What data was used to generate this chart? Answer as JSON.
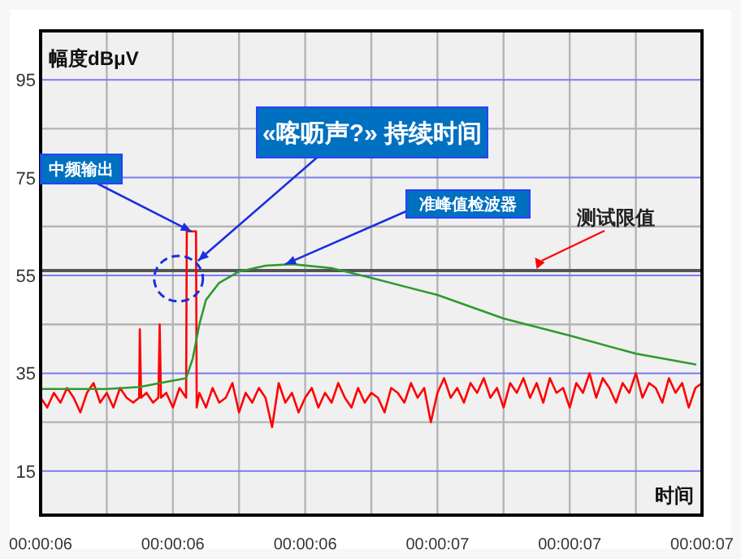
{
  "chart_data": {
    "type": "line",
    "ylabel": "幅度dBμV",
    "xlabel": "时间",
    "xlim": [
      6.25,
      6.75
    ],
    "ylim": [
      6,
      105
    ],
    "xticks": [
      {
        "value": 6.25,
        "label": "00:00:06"
      },
      {
        "value": 6.3,
        "label": null
      },
      {
        "value": 6.35,
        "label": "00:00:06"
      },
      {
        "value": 6.4,
        "label": null
      },
      {
        "value": 6.45,
        "label": "00:00:06"
      },
      {
        "value": 6.5,
        "label": null
      },
      {
        "value": 6.55,
        "label": "00:00:07"
      },
      {
        "value": 6.6,
        "label": null
      },
      {
        "value": 6.65,
        "label": "00:00:07"
      },
      {
        "value": 6.7,
        "label": null
      },
      {
        "value": 6.75,
        "label": "00:00:07"
      }
    ],
    "yticks": [
      15,
      {
        "value": 25,
        "label": null
      },
      35,
      {
        "value": 45,
        "label": null
      },
      55,
      {
        "value": 65,
        "label": null
      },
      75,
      {
        "value": 85,
        "label": null
      },
      95
    ],
    "grid": true,
    "series": [
      {
        "color": "#ff0000",
        "x": [
          6.25,
          6.255,
          6.26,
          6.265,
          6.27,
          6.275,
          6.28,
          6.285,
          6.29,
          6.295,
          6.3,
          6.305,
          6.31,
          6.315,
          6.32,
          6.3245,
          6.325,
          6.326,
          6.33,
          6.335,
          6.339,
          6.34,
          6.341,
          6.345,
          6.35,
          6.355,
          6.3575,
          6.36,
          6.3605,
          6.3675,
          6.368,
          6.37,
          6.375,
          6.38,
          6.385,
          6.39,
          6.395,
          6.4,
          6.405,
          6.41,
          6.415,
          6.42,
          6.425,
          6.43,
          6.435,
          6.44,
          6.445,
          6.45,
          6.455,
          6.46,
          6.465,
          6.47,
          6.475,
          6.48,
          6.485,
          6.49,
          6.495,
          6.5,
          6.505,
          6.51,
          6.515,
          6.52,
          6.525,
          6.53,
          6.535,
          6.54,
          6.545,
          6.55,
          6.555,
          6.56,
          6.565,
          6.57,
          6.575,
          6.58,
          6.585,
          6.59,
          6.595,
          6.6,
          6.605,
          6.61,
          6.615,
          6.62,
          6.625,
          6.63,
          6.635,
          6.64,
          6.645,
          6.65,
          6.655,
          6.66,
          6.665,
          6.67,
          6.675,
          6.68,
          6.685,
          6.69,
          6.695,
          6.7,
          6.705,
          6.71,
          6.715,
          6.72,
          6.725,
          6.73,
          6.735,
          6.74,
          6.745,
          6.75
        ],
        "values": [
          30,
          28,
          31,
          29,
          32,
          30,
          27,
          31,
          33,
          29,
          31,
          28,
          32,
          30,
          29,
          30,
          44,
          30,
          31,
          29,
          30,
          45,
          30,
          31,
          28,
          32,
          31,
          30,
          64,
          64,
          28,
          31,
          28,
          32,
          29,
          30,
          33,
          27,
          31,
          29,
          32,
          30,
          24,
          33,
          29,
          31,
          27,
          30,
          32,
          28,
          31,
          29,
          33,
          30,
          28,
          32,
          29,
          31,
          30,
          27,
          32,
          31,
          29,
          33,
          30,
          32,
          25,
          31,
          34,
          30,
          32,
          29,
          33,
          31,
          34,
          30,
          32,
          28,
          33,
          31,
          34,
          30,
          33,
          29,
          34,
          31,
          32,
          28,
          33,
          31,
          35,
          30,
          34,
          32,
          29,
          33,
          31,
          35,
          30,
          33,
          32,
          29,
          34,
          31,
          33,
          28,
          32,
          33
        ]
      },
      {
        "color": "#2e9a2e",
        "x": [
          6.25,
          6.3,
          6.325,
          6.34,
          6.36,
          6.365,
          6.37,
          6.375,
          6.385,
          6.4,
          6.42,
          6.44,
          6.47,
          6.5,
          6.55,
          6.6,
          6.65,
          6.7,
          6.745
        ],
        "values": [
          31.8,
          31.8,
          32.2,
          33.0,
          34.0,
          38,
          45,
          50,
          53.5,
          55.8,
          57.0,
          57.3,
          56.5,
          54.5,
          51.0,
          46.2,
          42.7,
          39.0,
          36.8
        ]
      }
    ],
    "ref_lines": [
      {
        "axis": "y",
        "value": 56,
        "label": "测试限值",
        "color": "#555555"
      }
    ],
    "annotations": [
      {
        "text": "中频输出",
        "x": 6.364,
        "y": 64
      },
      {
        "text": "«喀呖声?» 持续时间",
        "x": 6.369,
        "y": 58
      },
      {
        "text": "准峰值检波器",
        "x": 6.435,
        "y": 57.3
      }
    ]
  }
}
